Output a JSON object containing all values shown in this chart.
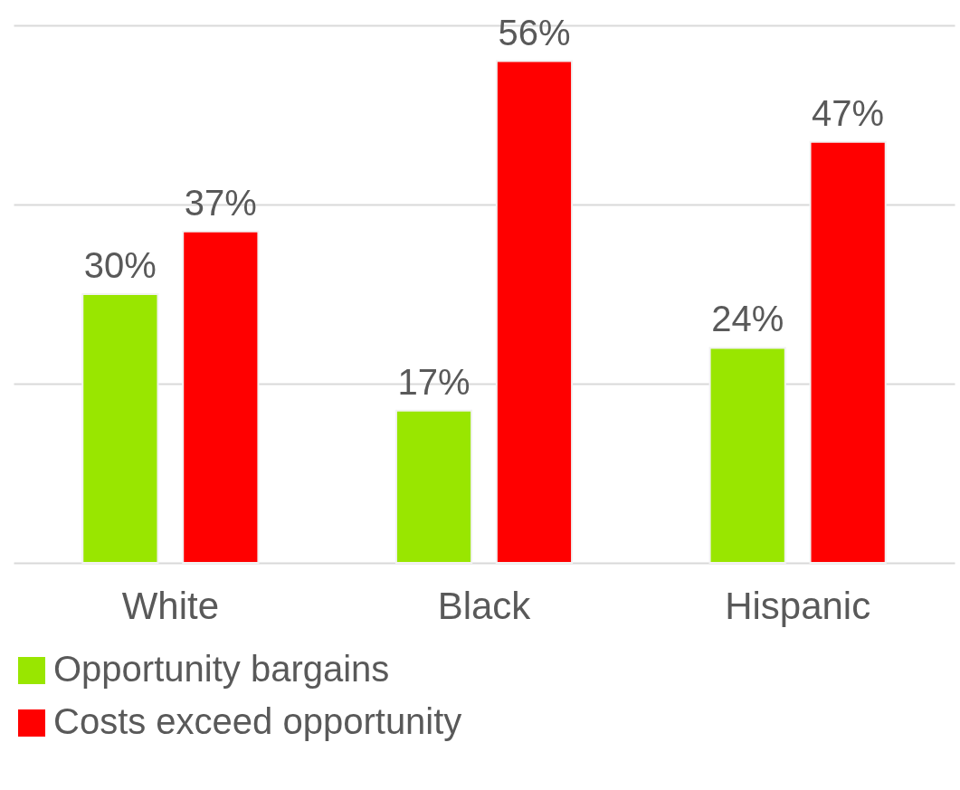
{
  "chart_data": {
    "type": "bar",
    "categories": [
      "White",
      "Black",
      "Hispanic"
    ],
    "series": [
      {
        "name": "Opportunity bargains",
        "color": "#99e600",
        "values": [
          30,
          17,
          24
        ],
        "value_labels": [
          "30%",
          "17%",
          "24%"
        ]
      },
      {
        "name": "Costs exceed opportunity",
        "color": "#ff0000",
        "values": [
          37,
          56,
          47
        ],
        "value_labels": [
          "37%",
          "56%",
          "47%"
        ]
      }
    ],
    "ylim": [
      0,
      60
    ],
    "yticks": [
      {
        "value": 0,
        "label": null
      },
      {
        "value": 20,
        "label": null
      },
      {
        "value": 40,
        "label": null
      },
      {
        "value": 60,
        "label": null
      }
    ],
    "tick_labels": "x",
    "grid": "y",
    "legend": "bottom"
  }
}
